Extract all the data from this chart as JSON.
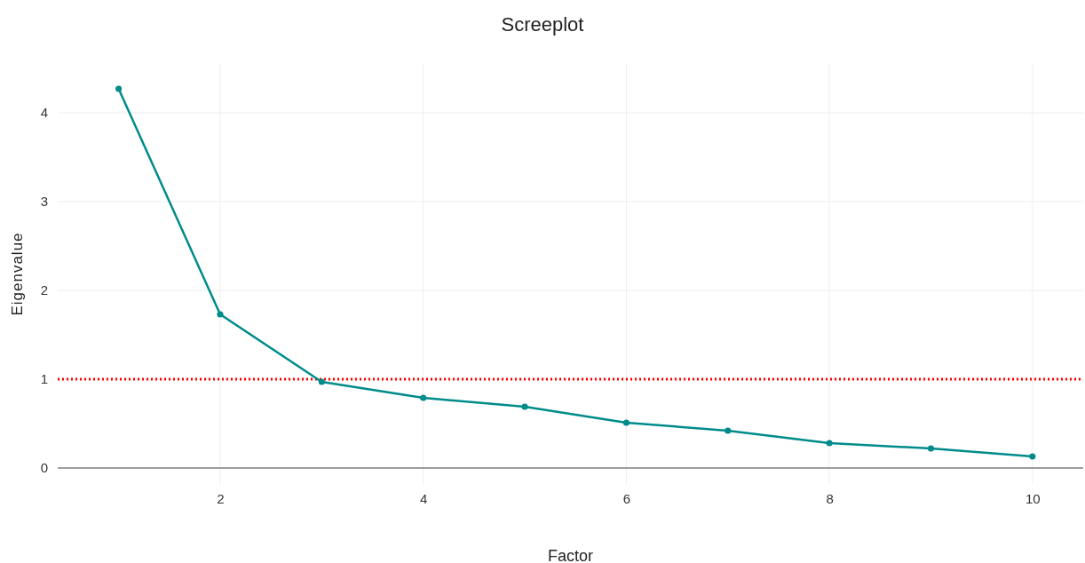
{
  "chart_data": {
    "type": "line",
    "title": "Screeplot",
    "xlabel": "Factor",
    "ylabel": "Eigenvalue",
    "x": [
      1,
      2,
      3,
      4,
      5,
      6,
      7,
      8,
      9,
      10
    ],
    "series": [
      {
        "color": "#008b8b",
        "values": [
          4.27,
          1.73,
          0.97,
          0.79,
          0.69,
          0.51,
          0.42,
          0.28,
          0.22,
          0.13
        ]
      }
    ],
    "xlim": [
      0.4,
      10.5
    ],
    "xticks": [
      2,
      4,
      6,
      8,
      10
    ],
    "ylim": [
      -0.18,
      4.55
    ],
    "yticks": [
      0,
      1,
      2,
      3,
      4
    ],
    "ref_lines": [
      {
        "axis": "y",
        "value": 1,
        "color": "#ff0000",
        "line_style": "dotted"
      }
    ],
    "grid": true,
    "marker": "circle",
    "line_style": "solid"
  }
}
